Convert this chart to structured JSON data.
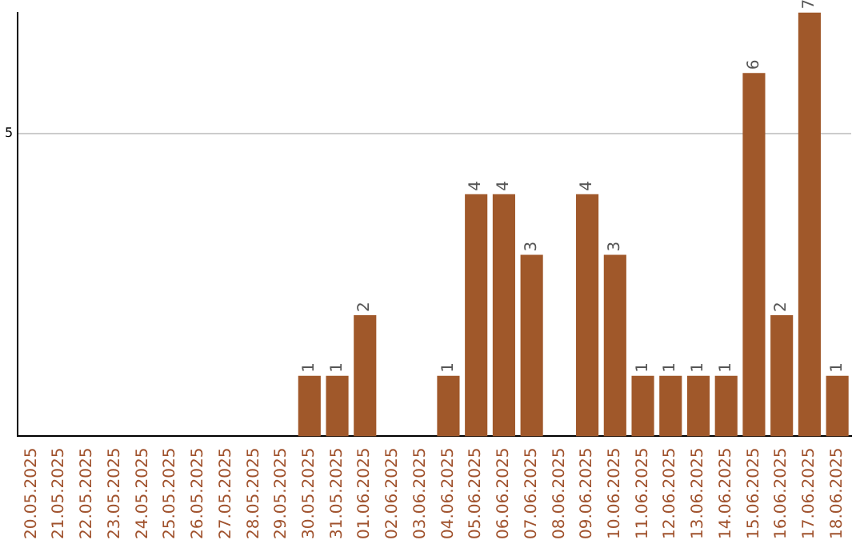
{
  "chart_data": {
    "type": "bar",
    "categories": [
      "20.05.2025",
      "21.05.2025",
      "22.05.2025",
      "23.05.2025",
      "24.05.2025",
      "25.05.2025",
      "26.05.2025",
      "27.05.2025",
      "28.05.2025",
      "29.05.2025",
      "30.05.2025",
      "31.05.2025",
      "01.06.2025",
      "02.06.2025",
      "03.06.2025",
      "04.06.2025",
      "05.06.2025",
      "06.06.2025",
      "07.06.2025",
      "08.06.2025",
      "09.06.2025",
      "10.06.2025",
      "11.06.2025",
      "12.06.2025",
      "13.06.2025",
      "14.06.2025",
      "15.06.2025",
      "16.06.2025",
      "17.06.2025",
      "18.06.2025"
    ],
    "values": [
      0,
      0,
      0,
      0,
      0,
      0,
      0,
      0,
      0,
      0,
      1,
      1,
      2,
      0,
      0,
      1,
      4,
      4,
      3,
      0,
      4,
      3,
      1,
      1,
      1,
      1,
      6,
      2,
      7,
      1
    ],
    "value_labels": [
      null,
      null,
      null,
      null,
      null,
      null,
      null,
      null,
      null,
      null,
      "1",
      "1",
      "2",
      null,
      null,
      "1",
      "4",
      "4",
      "3",
      null,
      "4",
      "3",
      "1",
      "1",
      "1",
      "1",
      "6",
      "2",
      "7",
      "1"
    ],
    "color": "#a0582a",
    "ylim": [
      0,
      7
    ],
    "yticks": [
      5
    ],
    "grid": "y",
    "legend": false
  }
}
